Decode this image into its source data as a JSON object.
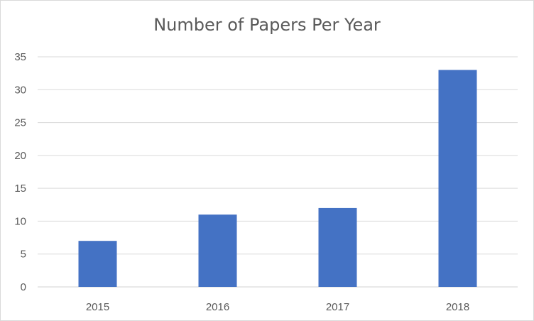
{
  "chart_data": {
    "type": "bar",
    "title": "Number of Papers Per Year",
    "categories": [
      "2015",
      "2016",
      "2017",
      "2018"
    ],
    "series": [
      {
        "values": [
          7,
          11,
          12,
          33
        ]
      }
    ],
    "xlabel": "",
    "ylabel": "",
    "ylim": [
      0,
      35
    ],
    "yticks": [
      0,
      5,
      10,
      15,
      20,
      25,
      30,
      35
    ],
    "grid": true,
    "legend": "none",
    "bar_color": "#4472C4",
    "grid_color": "#d9d9d9"
  }
}
